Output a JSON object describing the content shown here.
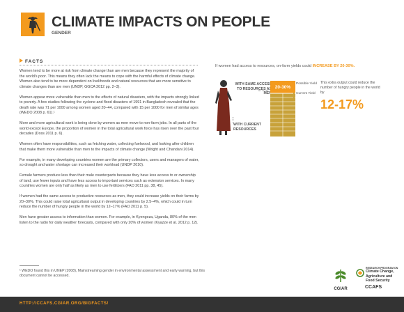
{
  "header": {
    "title": "CLIMATE IMPACTS ON PEOPLE",
    "subtitle": "GENDER",
    "brand_color": "#f39a1e"
  },
  "facts": {
    "heading": "FACTS",
    "paragraphs": [
      "Women tend to be more at risk from climate change than are men because they represent the majority of the world's poor. This means they often lack the means to cope with the harmful effects of climate change. Women also tend to be more dependent on livelihoods and natural resources that are more sensitive to climate changes than are men (UNDP, GGCA 2012 pp. 2–3).",
      "Women appear more vulnerable than men to the effects of natural disasters, with the impacts strongly linked to poverty. A few studies following the cyclone and flood disasters of 1991 in Bangladesh revealed that the death rate was 71 per 1000 among women aged 20–44, compared with 15 per 1000 for men of similar ages (WEDO 2008 p. 61).¹",
      "More and more agricultural work is being done by women as men move to non-farm jobs. In all parts of the world except Europe, the proportion of women in the total agricultural work force has risen over the past four decades (Doss 2011 p. 6).",
      "Women often have responsibilities, such as fetching water, collecting fuelwood, and looking after children that make them more vulnerable than men to the impacts of climate change (Wright and Chandani 2014).",
      "For example, in many developing countries women are the primary collectors, users and managers of water, so drought and water shortage can increased their workload (UNDP 2010).",
      "Female farmers produce less than their male counterparts because they have less access to or ownership of land, use fewer inputs and have less access to important services such as extension services. In many countries women are only half as likely as men to use fertilizers (FAO 2011 pp. 38, 45).",
      "If women had the same access to productive resources as men, they could increase yields on their farms by 20–30%. This could raise total agricultural output in developing countries by 2.5–4%, which could in turn reduce the number of hungry people in the world by 12–17% (FAO 2011 p. 5).",
      "Men have greater access to information than women. For example, in Kyengeza, Uganda, 80% of the men listen to the radio for daily weather forecasts, compared with only 20% of women (Kyazze et al. 2012 p. 12)."
    ],
    "footnote": "¹ WEDO found this in UNEP (2008), Mainstreaming gender in environmental assessment and early warning, but this document cannot be accessed."
  },
  "infographic": {
    "intro_prefix": "If women had access to resources, on-farm yields could",
    "intro_highlight": "INCREASE BY 20-30%.",
    "label_same_access": "WITH SAME ACCESS TO RESOURCES AS MEN",
    "label_current": "WITH CURRENT RESOURCES",
    "increase_range": "20-30%",
    "legend_possible": "Possible Yield",
    "legend_current": "Current Yield",
    "possible_color": "#f39a1e",
    "current_color": "#c8a23a",
    "extra_text": "This extra output could reduce the number of hungry people in the world by",
    "hunger_reduction": "12-17%"
  },
  "footer": {
    "url": "HTTP://CCAFS.CGIAR.ORG/BIGFACTS/",
    "cgiar_name": "CGIAR",
    "ccafs_program_prefix": "RESEARCH PROGRAM ON",
    "ccafs_program_name": "Climate Change, Agriculture and Food Security",
    "ccafs_name": "CCAFS"
  }
}
